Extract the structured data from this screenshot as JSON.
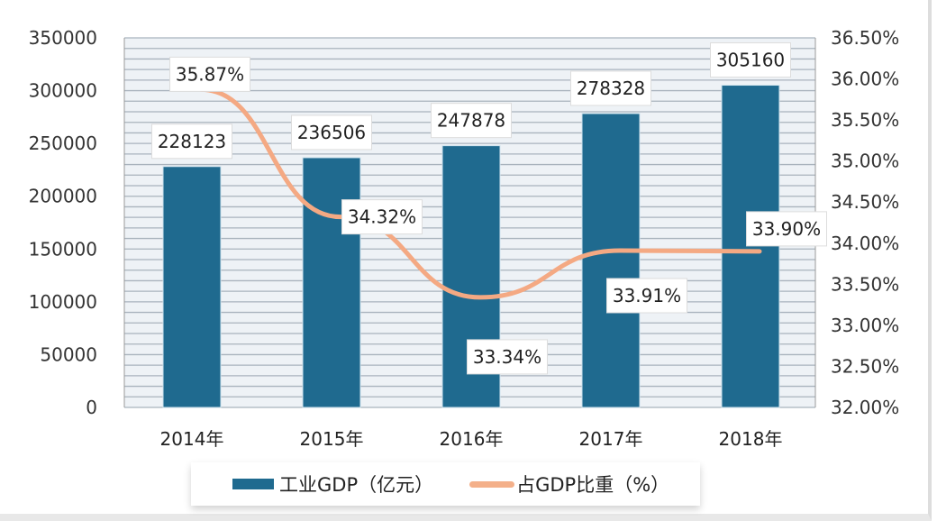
{
  "chart_data": {
    "type": "bar+line",
    "categories": [
      "2014年",
      "2015年",
      "2016年",
      "2017年",
      "2018年"
    ],
    "series": [
      {
        "name": "工业GDP（亿元）",
        "type": "bar",
        "axis": "left",
        "values": [
          228123,
          236506,
          247878,
          278328,
          305160
        ],
        "labels": [
          "228123",
          "236506",
          "247878",
          "278328",
          "305160"
        ],
        "color": "#1f6a8f"
      },
      {
        "name": "占GDP比重（%）",
        "type": "line",
        "axis": "right",
        "values": [
          35.87,
          34.32,
          33.34,
          33.91,
          33.9
        ],
        "labels": [
          "35.87%",
          "34.32%",
          "33.34%",
          "33.91%",
          "33.90%"
        ],
        "color": "#f4a983"
      }
    ],
    "yleft": {
      "min": 0,
      "max": 350000,
      "ticks": [
        "0",
        "50000",
        "100000",
        "150000",
        "200000",
        "250000",
        "300000",
        "350000"
      ]
    },
    "yright": {
      "min": 32,
      "max": 36.5,
      "ticks": [
        "32.00%",
        "32.50%",
        "33.00%",
        "33.50%",
        "34.00%",
        "34.50%",
        "35.00%",
        "35.50%",
        "36.00%",
        "36.50%"
      ]
    },
    "grid": true,
    "legend": "bottom"
  }
}
